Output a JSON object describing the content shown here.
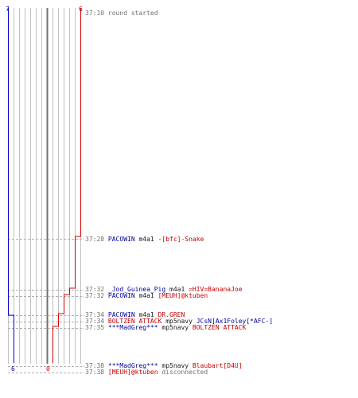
{
  "colors": {
    "team_blue": "#0000cc",
    "team_red": "#dd0000",
    "grid": "#c0c0c0",
    "center": "#707070",
    "dash": "#b0b0b0"
  },
  "scores": {
    "top_left": "7",
    "top_right": "6",
    "bottom_left": "6",
    "bottom_right": "0"
  },
  "events": [
    {
      "time": "37:10",
      "kind": "info",
      "text": "round started"
    },
    {
      "time": "37:28",
      "kind": "kill",
      "killer": "PACOWIN",
      "killer_team": "blue",
      "weapon": "m4a1",
      "victim": "-[bfc]-Snake",
      "victim_team": "red"
    },
    {
      "time": "37:32",
      "kind": "kill",
      "killer": "_Jod_Guinea_Pig",
      "killer_team": "blue",
      "weapon": "m4a1",
      "victim": "=HIV=BananaJoe",
      "victim_team": "red"
    },
    {
      "time": "37:32",
      "kind": "kill",
      "killer": "PACOWIN",
      "killer_team": "blue",
      "weapon": "m4a1",
      "victim": "[MEUH]@ktuben",
      "victim_team": "red"
    },
    {
      "time": "37:34",
      "kind": "kill",
      "killer": "PACOWIN",
      "killer_team": "blue",
      "weapon": "m4a1",
      "victim": "DR.GREN",
      "victim_team": "red"
    },
    {
      "time": "37:34",
      "kind": "kill",
      "killer": "BOLTZEN ATTACK",
      "killer_team": "red",
      "weapon": "mp5navy",
      "victim": "JCsN]Ax1Foley[*AFC-]",
      "victim_team": "blue"
    },
    {
      "time": "37:35",
      "kind": "kill",
      "killer": "***MadGreg***",
      "killer_team": "blue",
      "weapon": "mp5navy",
      "victim": "BOLTZEN ATTACK",
      "victim_team": "red"
    },
    {
      "time": "37:38",
      "kind": "kill",
      "killer": "***MadGreg***",
      "killer_team": "blue",
      "weapon": "mp5navy",
      "victim": "Blaubart[D4U]",
      "victim_team": "red"
    },
    {
      "time": "37:38",
      "kind": "disconnect",
      "player": "[MEUH]@ktuben",
      "player_team": "red",
      "text": "disconnected"
    }
  ]
}
